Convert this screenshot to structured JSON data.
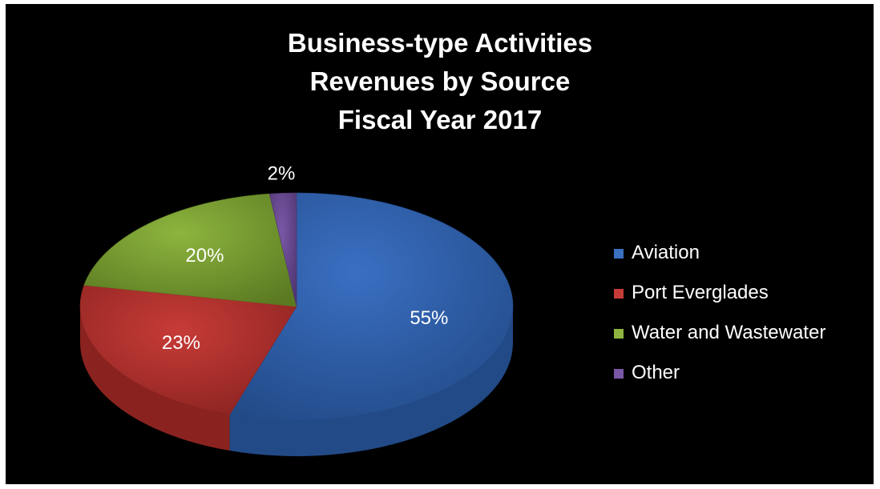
{
  "chart_data": {
    "type": "pie",
    "title": [
      "Business-type Activities",
      "Revenues by Source",
      "Fiscal Year 2017"
    ],
    "categories": [
      "Aviation",
      "Port Everglades",
      "Water and Wastewater",
      "Other"
    ],
    "values": [
      55,
      23,
      20,
      2
    ],
    "data_labels": [
      "55%",
      "23%",
      "20%",
      "2%"
    ],
    "colors": [
      "#3a6fc2",
      "#c73b37",
      "#8db43e",
      "#7a57a6"
    ],
    "side_colors": [
      "#224a87",
      "#8a2320",
      "#5b7a22",
      "#4e3570"
    ],
    "style": "3d",
    "legend_position": "right",
    "background": "#000000"
  }
}
